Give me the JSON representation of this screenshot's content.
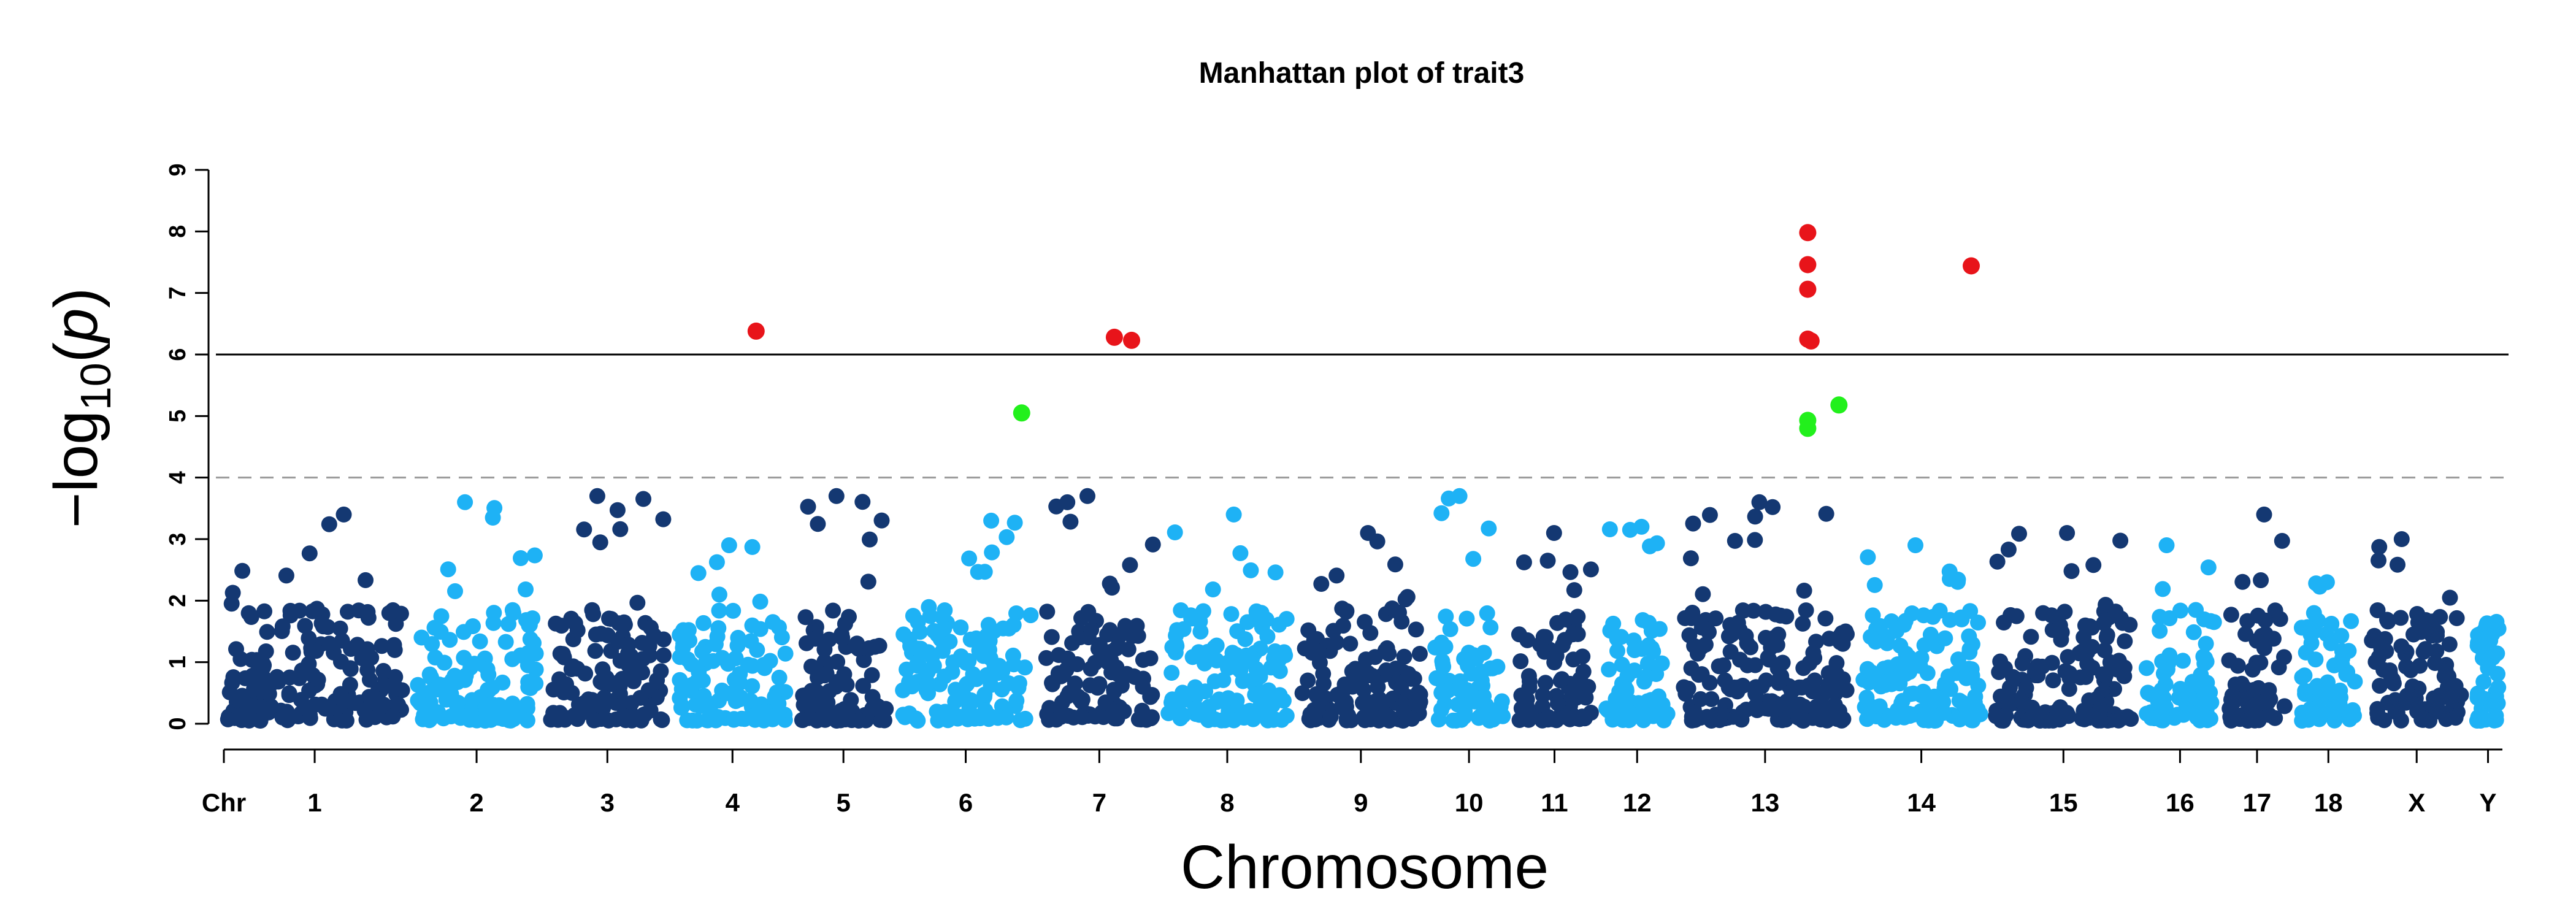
{
  "chart_data": {
    "type": "scatter",
    "title": "Manhattan plot of trait3",
    "xlabel": "Chromosome",
    "ylabel_prefix": "−log",
    "ylabel_sub": "10",
    "ylabel_open": "(",
    "ylabel_p": "p",
    "ylabel_close": ")",
    "ylim": [
      0,
      9
    ],
    "yticks": [
      "0",
      "1",
      "2",
      "3",
      "4",
      "5",
      "6",
      "7",
      "8",
      "9"
    ],
    "chr_axis_label": "Chr",
    "chromosomes": [
      {
        "name": "1",
        "length": 31,
        "peak": 3.4,
        "color": "dark"
      },
      {
        "name": "2",
        "length": 21,
        "peak": 3.6,
        "color": "light"
      },
      {
        "name": "3",
        "length": 20,
        "peak": 3.7,
        "color": "dark"
      },
      {
        "name": "4",
        "length": 19,
        "peak": 2.9,
        "color": "light"
      },
      {
        "name": "5",
        "length": 15,
        "peak": 3.7,
        "color": "dark"
      },
      {
        "name": "6",
        "length": 23,
        "peak": 3.3,
        "color": "light"
      },
      {
        "name": "7",
        "length": 19,
        "peak": 3.7,
        "color": "dark"
      },
      {
        "name": "8",
        "length": 21,
        "peak": 3.4,
        "color": "light"
      },
      {
        "name": "9",
        "length": 21,
        "peak": 3.1,
        "color": "dark"
      },
      {
        "name": "10",
        "length": 12,
        "peak": 3.7,
        "color": "light"
      },
      {
        "name": "11",
        "length": 13,
        "peak": 3.1,
        "color": "dark"
      },
      {
        "name": "12",
        "length": 11,
        "peak": 3.2,
        "color": "light"
      },
      {
        "name": "13",
        "length": 29,
        "peak": 3.6,
        "color": "dark"
      },
      {
        "name": "14",
        "length": 21,
        "peak": 2.9,
        "color": "light"
      },
      {
        "name": "15",
        "length": 24,
        "peak": 3.1,
        "color": "dark"
      },
      {
        "name": "16",
        "length": 12,
        "peak": 2.9,
        "color": "light"
      },
      {
        "name": "17",
        "length": 10,
        "peak": 3.4,
        "color": "dark"
      },
      {
        "name": "18",
        "length": 10,
        "peak": 2.3,
        "color": "light"
      },
      {
        "name": "X",
        "length": 16,
        "peak": 3.0,
        "color": "dark"
      },
      {
        "name": "Y",
        "length": 4,
        "peak": 1.4,
        "color": "light"
      }
    ],
    "colors": {
      "dark": "#143872",
      "light": "#1EB2F5",
      "significant": "#E8141A",
      "suggestive": "#22F01C"
    },
    "genome_wide_threshold": 6,
    "suggestive_threshold": 4,
    "highlighted_points": [
      {
        "chr": "4",
        "pos": 0.72,
        "y": 6.38,
        "class": "significant"
      },
      {
        "chr": "6",
        "pos": 0.93,
        "y": 5.05,
        "class": "suggestive"
      },
      {
        "chr": "7",
        "pos": 0.64,
        "y": 6.28,
        "class": "significant"
      },
      {
        "chr": "7",
        "pos": 0.8,
        "y": 6.23,
        "class": "significant"
      },
      {
        "chr": "13",
        "pos": 0.76,
        "y": 7.98,
        "class": "significant"
      },
      {
        "chr": "13",
        "pos": 0.76,
        "y": 7.46,
        "class": "significant"
      },
      {
        "chr": "13",
        "pos": 0.76,
        "y": 7.06,
        "class": "significant"
      },
      {
        "chr": "13",
        "pos": 0.76,
        "y": 6.25,
        "class": "significant"
      },
      {
        "chr": "13",
        "pos": 0.78,
        "y": 6.22,
        "class": "significant"
      },
      {
        "chr": "13",
        "pos": 0.76,
        "y": 4.93,
        "class": "suggestive"
      },
      {
        "chr": "13",
        "pos": 0.76,
        "y": 4.8,
        "class": "suggestive"
      },
      {
        "chr": "13",
        "pos": 0.95,
        "y": 5.18,
        "class": "suggestive"
      },
      {
        "chr": "14",
        "pos": 0.92,
        "y": 7.44,
        "class": "significant"
      }
    ]
  }
}
